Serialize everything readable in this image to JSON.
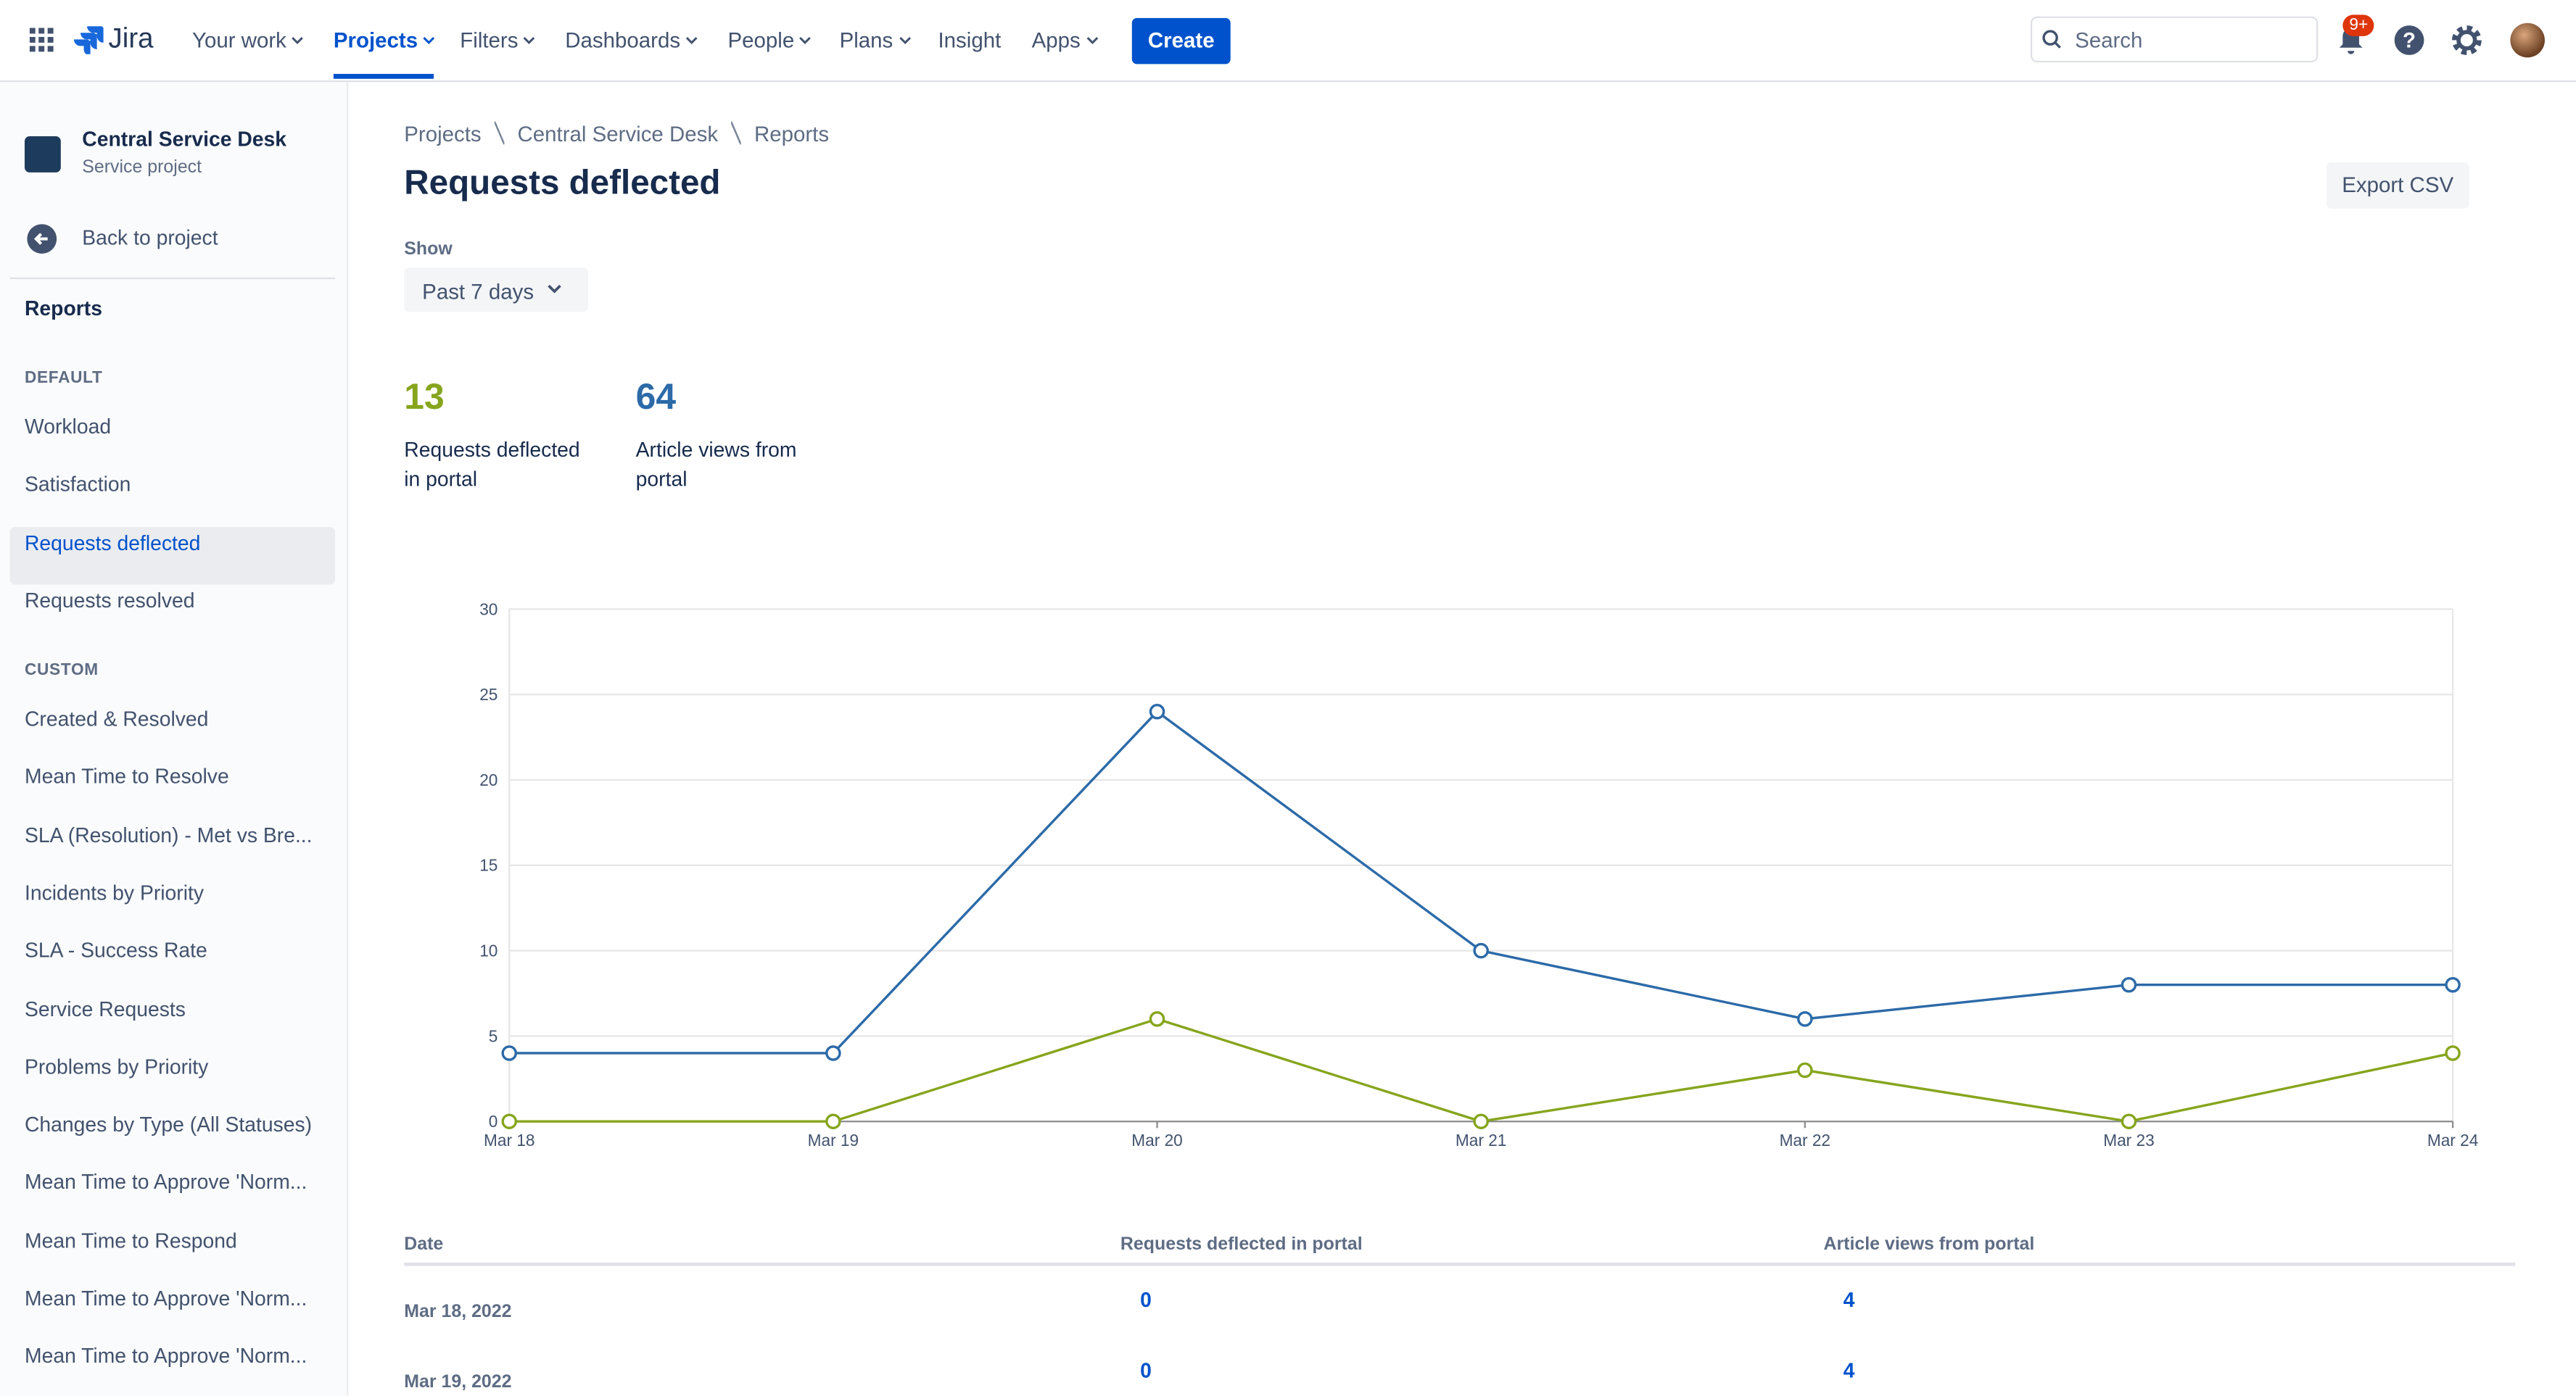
{
  "nav": {
    "brand": "Jira",
    "items": [
      "Your work",
      "Projects",
      "Filters",
      "Dashboards",
      "People",
      "Plans",
      "Insight",
      "Apps"
    ],
    "create": "Create",
    "search": "Search",
    "badge": "9+"
  },
  "sidebar": {
    "project": "Central Service Desk",
    "project_type": "Service project",
    "back": "Back to project",
    "section": "Reports",
    "default_heading": "DEFAULT",
    "default_items": [
      "Workload",
      "Satisfaction",
      "Requests deflected",
      "Requests resolved"
    ],
    "custom_heading": "CUSTOM",
    "custom_items": [
      "Created & Resolved",
      "Mean Time to Resolve",
      "SLA (Resolution) - Met vs Bre...",
      "Incidents by Priority",
      "SLA - Success Rate",
      "Service Requests",
      "Problems by Priority",
      "Changes by Type (All Statuses)",
      "Mean Time to Approve 'Norm...",
      "Mean Time to Respond",
      "Mean Time to Approve 'Norm...",
      "Mean Time to Approve 'Norm..."
    ]
  },
  "header": {
    "breadcrumbs": [
      "Projects",
      "Central Service Desk",
      "Reports"
    ],
    "title": "Requests deflected",
    "export": "Export CSV",
    "show_label": "Show",
    "period": "Past 7 days"
  },
  "stats": [
    {
      "value": 13,
      "label": "Requests deflected in portal"
    },
    {
      "value": 64,
      "label": "Article views from portal"
    }
  ],
  "chart_data": {
    "type": "line",
    "categories": [
      "Mar 18",
      "Mar 19",
      "Mar 20",
      "Mar 21",
      "Mar 22",
      "Mar 23",
      "Mar 24"
    ],
    "series": [
      {
        "color": "#2c6aa8",
        "values": [
          4,
          4,
          24,
          10,
          6,
          8,
          8
        ]
      },
      {
        "color": "#86a51d",
        "values": [
          0,
          0,
          6,
          0,
          3,
          0,
          4
        ]
      }
    ],
    "ylim": [
      0,
      30
    ],
    "yticks": [
      0,
      5,
      10,
      15,
      20,
      25,
      30
    ],
    "grid": true
  },
  "table": {
    "headers": [
      "Date",
      "Requests deflected in portal",
      "Article views from portal"
    ],
    "rows": [
      [
        "Mar 18, 2022",
        0,
        4
      ],
      [
        "Mar 19, 2022",
        0,
        4
      ]
    ]
  }
}
